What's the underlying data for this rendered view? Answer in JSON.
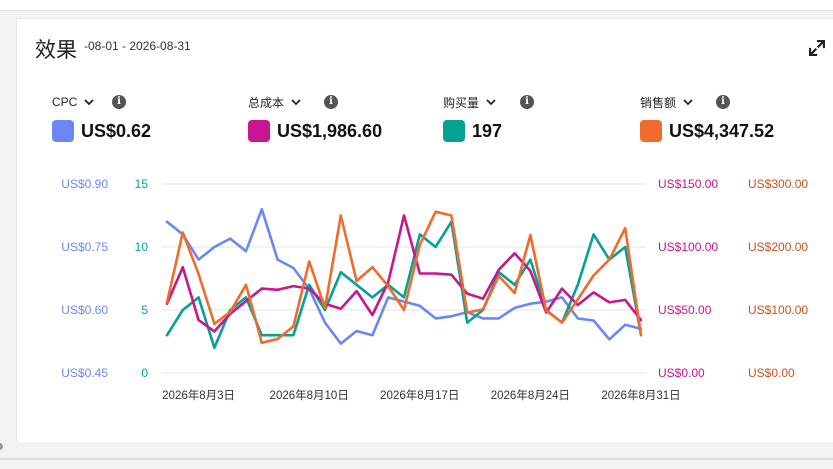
{
  "header": {
    "title": "效果",
    "date_range": "-08-01 - 2026-08-31"
  },
  "icons": {
    "expand": "expand-icon",
    "info": "info-icon",
    "chevron": "chevron-down-icon"
  },
  "metrics": [
    {
      "label": "CPC",
      "value": "US$0.62",
      "color": "#6b87f5"
    },
    {
      "label": "总成本",
      "value": "US$1,986.60",
      "color": "#c7168f"
    },
    {
      "label": "购买量",
      "value": "197",
      "color": "#06a192"
    },
    {
      "label": "销售额",
      "value": "US$4,347.52",
      "color": "#f06b2c"
    }
  ],
  "chart_data": {
    "type": "line",
    "x": [
      "2026-08-01",
      "2026-08-02",
      "2026-08-03",
      "2026-08-04",
      "2026-08-05",
      "2026-08-06",
      "2026-08-07",
      "2026-08-08",
      "2026-08-09",
      "2026-08-10",
      "2026-08-11",
      "2026-08-12",
      "2026-08-13",
      "2026-08-14",
      "2026-08-15",
      "2026-08-16",
      "2026-08-17",
      "2026-08-18",
      "2026-08-19",
      "2026-08-20",
      "2026-08-21",
      "2026-08-22",
      "2026-08-23",
      "2026-08-24",
      "2026-08-25",
      "2026-08-26",
      "2026-08-27",
      "2026-08-28",
      "2026-08-29",
      "2026-08-30",
      "2026-08-31"
    ],
    "x_tick_labels": [
      "2026年8月3日",
      "2026年8月10日",
      "2026年8月17日",
      "2026年8月24日",
      "2026年8月31日"
    ],
    "x_tick_dates": [
      "2026-08-03",
      "2026-08-10",
      "2026-08-17",
      "2026-08-24",
      "2026-08-31"
    ],
    "axes": [
      {
        "id": "cpc",
        "side": "left",
        "order": 0,
        "color": "#6b87f5",
        "ylim": [
          0.45,
          0.9
        ],
        "ticks": [
          0.45,
          0.6,
          0.75,
          0.9
        ],
        "tick_labels": [
          "US$0.45",
          "US$0.60",
          "US$0.75",
          "US$0.90"
        ]
      },
      {
        "id": "purchases",
        "side": "left",
        "order": 1,
        "color": "#06a192",
        "ylim": [
          0,
          15
        ],
        "ticks": [
          0,
          5,
          10,
          15
        ],
        "tick_labels": [
          "0",
          "5",
          "10",
          "15"
        ]
      },
      {
        "id": "cost",
        "side": "right",
        "order": 0,
        "color": "#c7168f",
        "ylim": [
          0,
          150
        ],
        "ticks": [
          0,
          50,
          100,
          150
        ],
        "tick_labels": [
          "US$0.00",
          "US$50.00",
          "US$100.00",
          "US$150.00"
        ]
      },
      {
        "id": "sales",
        "side": "right",
        "order": 1,
        "color": "#c9531d",
        "ylim": [
          0,
          300
        ],
        "ticks": [
          0,
          100,
          200,
          300
        ],
        "tick_labels": [
          "US$0.00",
          "US$100.00",
          "US$200.00",
          "US$300.00"
        ]
      }
    ],
    "series": [
      {
        "name": "CPC",
        "axis": "cpc",
        "color": "#6b87f5",
        "values": [
          0.81,
          0.78,
          0.72,
          0.75,
          0.77,
          0.74,
          0.84,
          0.72,
          0.7,
          0.65,
          0.57,
          0.52,
          0.55,
          0.54,
          0.63,
          0.62,
          0.61,
          0.58,
          0.585,
          0.595,
          0.58,
          0.58,
          0.605,
          0.615,
          0.62,
          0.63,
          0.58,
          0.575,
          0.53,
          0.565,
          0.555
        ]
      },
      {
        "name": "总成本",
        "axis": "cost",
        "color": "#c7168f",
        "values": [
          55,
          84,
          42,
          33,
          47,
          57,
          67,
          66,
          69,
          67,
          55,
          51,
          65,
          46,
          72,
          125,
          79,
          79,
          78,
          63,
          59,
          82,
          95,
          81,
          48,
          67,
          54,
          64,
          56,
          58,
          42
        ]
      },
      {
        "name": "购买量",
        "axis": "purchases",
        "color": "#06a192",
        "values": [
          3,
          5,
          6,
          2,
          5,
          6,
          3,
          3,
          3,
          7,
          5,
          8,
          7,
          6,
          7,
          6,
          11,
          10,
          12,
          4,
          5,
          8,
          7,
          9,
          5,
          4,
          7,
          11,
          9,
          10,
          3
        ]
      },
      {
        "name": "销售额",
        "axis": "sales",
        "color": "#f06b2c",
        "values": [
          112,
          223,
          157,
          78,
          97,
          140,
          48,
          54,
          74,
          177,
          103,
          250,
          146,
          168,
          138,
          100,
          203,
          256,
          250,
          96,
          101,
          154,
          127,
          219,
          99,
          80,
          117,
          155,
          180,
          230,
          60
        ]
      }
    ],
    "grid": true,
    "legend": "top"
  }
}
